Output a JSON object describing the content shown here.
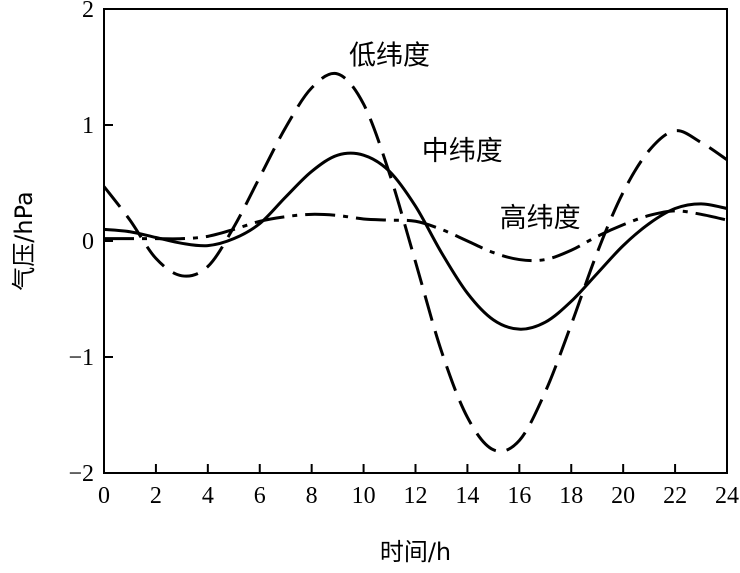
{
  "chart_data": {
    "type": "line",
    "title": "",
    "xlabel": "时间/h",
    "ylabel": "气压/hPa",
    "xlim": [
      0,
      24
    ],
    "ylim": [
      -2,
      2
    ],
    "xticks": [
      "0",
      "2",
      "4",
      "6",
      "8",
      "10",
      "12",
      "14",
      "16",
      "18",
      "20",
      "22",
      "24"
    ],
    "yticks": [
      "2",
      "1",
      "0",
      "−1",
      "−2"
    ],
    "grid": false,
    "legend": "inline labels",
    "series": [
      {
        "name": "低纬度",
        "style": "dashed",
        "color": "#000000",
        "x": [
          0,
          1,
          2,
          3,
          4,
          5,
          6,
          7,
          8,
          9,
          10,
          11,
          12,
          13,
          14,
          15,
          16,
          17,
          18,
          19,
          20,
          21,
          22,
          23,
          24
        ],
        "y": [
          0.47,
          0.18,
          -0.15,
          -0.3,
          -0.22,
          0.12,
          0.55,
          0.98,
          1.32,
          1.44,
          1.18,
          0.58,
          -0.18,
          -0.95,
          -1.52,
          -1.8,
          -1.72,
          -1.3,
          -0.72,
          -0.1,
          0.42,
          0.78,
          0.95,
          0.85,
          0.7
        ]
      },
      {
        "name": "中纬度",
        "style": "solid",
        "color": "#000000",
        "x": [
          0,
          1,
          2,
          3,
          4,
          5,
          6,
          7,
          8,
          9,
          10,
          11,
          12,
          13,
          14,
          15,
          16,
          17,
          18,
          19,
          20,
          21,
          22,
          23,
          24
        ],
        "y": [
          0.1,
          0.08,
          0.03,
          -0.02,
          -0.04,
          0.02,
          0.15,
          0.38,
          0.6,
          0.74,
          0.74,
          0.6,
          0.3,
          -0.1,
          -0.45,
          -0.68,
          -0.76,
          -0.7,
          -0.52,
          -0.28,
          -0.04,
          0.15,
          0.28,
          0.32,
          0.28
        ]
      },
      {
        "name": "高纬度",
        "style": "dash-dot",
        "color": "#000000",
        "x": [
          0,
          1,
          2,
          3,
          4,
          5,
          6,
          7,
          8,
          9,
          10,
          11,
          12,
          13,
          14,
          15,
          16,
          17,
          18,
          19,
          20,
          21,
          22,
          23,
          24
        ],
        "y": [
          0.02,
          0.02,
          0.02,
          0.02,
          0.04,
          0.1,
          0.17,
          0.21,
          0.23,
          0.22,
          0.19,
          0.18,
          0.17,
          0.1,
          0.0,
          -0.1,
          -0.16,
          -0.16,
          -0.08,
          0.04,
          0.14,
          0.22,
          0.26,
          0.23,
          0.18
        ]
      }
    ],
    "annotations": [
      {
        "text": "低纬度",
        "x": 11.0,
        "y": 1.52
      },
      {
        "text": "中纬度",
        "x": 13.8,
        "y": 0.7
      },
      {
        "text": "高纬度",
        "x": 16.8,
        "y": 0.12
      }
    ]
  }
}
